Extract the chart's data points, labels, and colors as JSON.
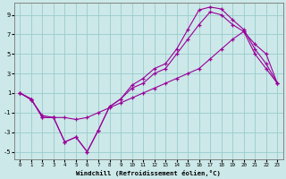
{
  "xlabel": "Windchill (Refroidissement éolien,°C)",
  "bg_color": "#cce8e8",
  "line_color": "#990099",
  "grid_color": "#99cccc",
  "xlim": [
    -0.5,
    23.5
  ],
  "ylim": [
    -5.8,
    10.2
  ],
  "xticks": [
    0,
    1,
    2,
    3,
    4,
    5,
    6,
    7,
    8,
    9,
    10,
    11,
    12,
    13,
    14,
    15,
    16,
    17,
    18,
    19,
    20,
    21,
    22,
    23
  ],
  "yticks": [
    -5,
    -3,
    -1,
    1,
    3,
    5,
    7,
    9
  ],
  "line1_x": [
    0,
    1,
    2,
    3,
    4,
    5,
    6,
    7,
    8,
    9,
    10,
    11,
    12,
    13,
    14,
    15,
    16,
    17,
    18,
    19,
    20,
    21,
    22,
    23
  ],
  "line1_y": [
    1.0,
    0.4,
    -1.5,
    -1.5,
    -4.0,
    -3.5,
    -5.0,
    -2.8,
    -0.4,
    0.4,
    1.8,
    2.5,
    3.5,
    4.0,
    5.5,
    7.5,
    9.5,
    9.8,
    9.6,
    8.5,
    7.5,
    5.5,
    4.0,
    2.0
  ],
  "line2_x": [
    0,
    1,
    2,
    3,
    4,
    5,
    6,
    7,
    8,
    9,
    10,
    11,
    12,
    13,
    14,
    15,
    16,
    17,
    18,
    19,
    20,
    21,
    22,
    23
  ],
  "line2_y": [
    1.0,
    0.4,
    -1.5,
    -1.5,
    -4.0,
    -3.5,
    -5.0,
    -2.8,
    -0.4,
    0.4,
    1.5,
    2.0,
    3.0,
    3.5,
    5.0,
    6.5,
    8.0,
    9.3,
    9.0,
    8.0,
    7.3,
    5.0,
    3.5,
    2.0
  ],
  "line3_x": [
    0,
    1,
    2,
    3,
    4,
    5,
    6,
    7,
    8,
    9,
    10,
    11,
    12,
    13,
    14,
    15,
    16,
    17,
    18,
    19,
    20,
    21,
    22,
    23
  ],
  "line3_y": [
    1.0,
    0.3,
    -1.3,
    -1.5,
    -1.5,
    -1.7,
    -1.5,
    -1.0,
    -0.5,
    0.0,
    0.5,
    1.0,
    1.5,
    2.0,
    2.5,
    3.0,
    3.5,
    4.5,
    5.5,
    6.5,
    7.3,
    6.0,
    5.0,
    2.0
  ]
}
